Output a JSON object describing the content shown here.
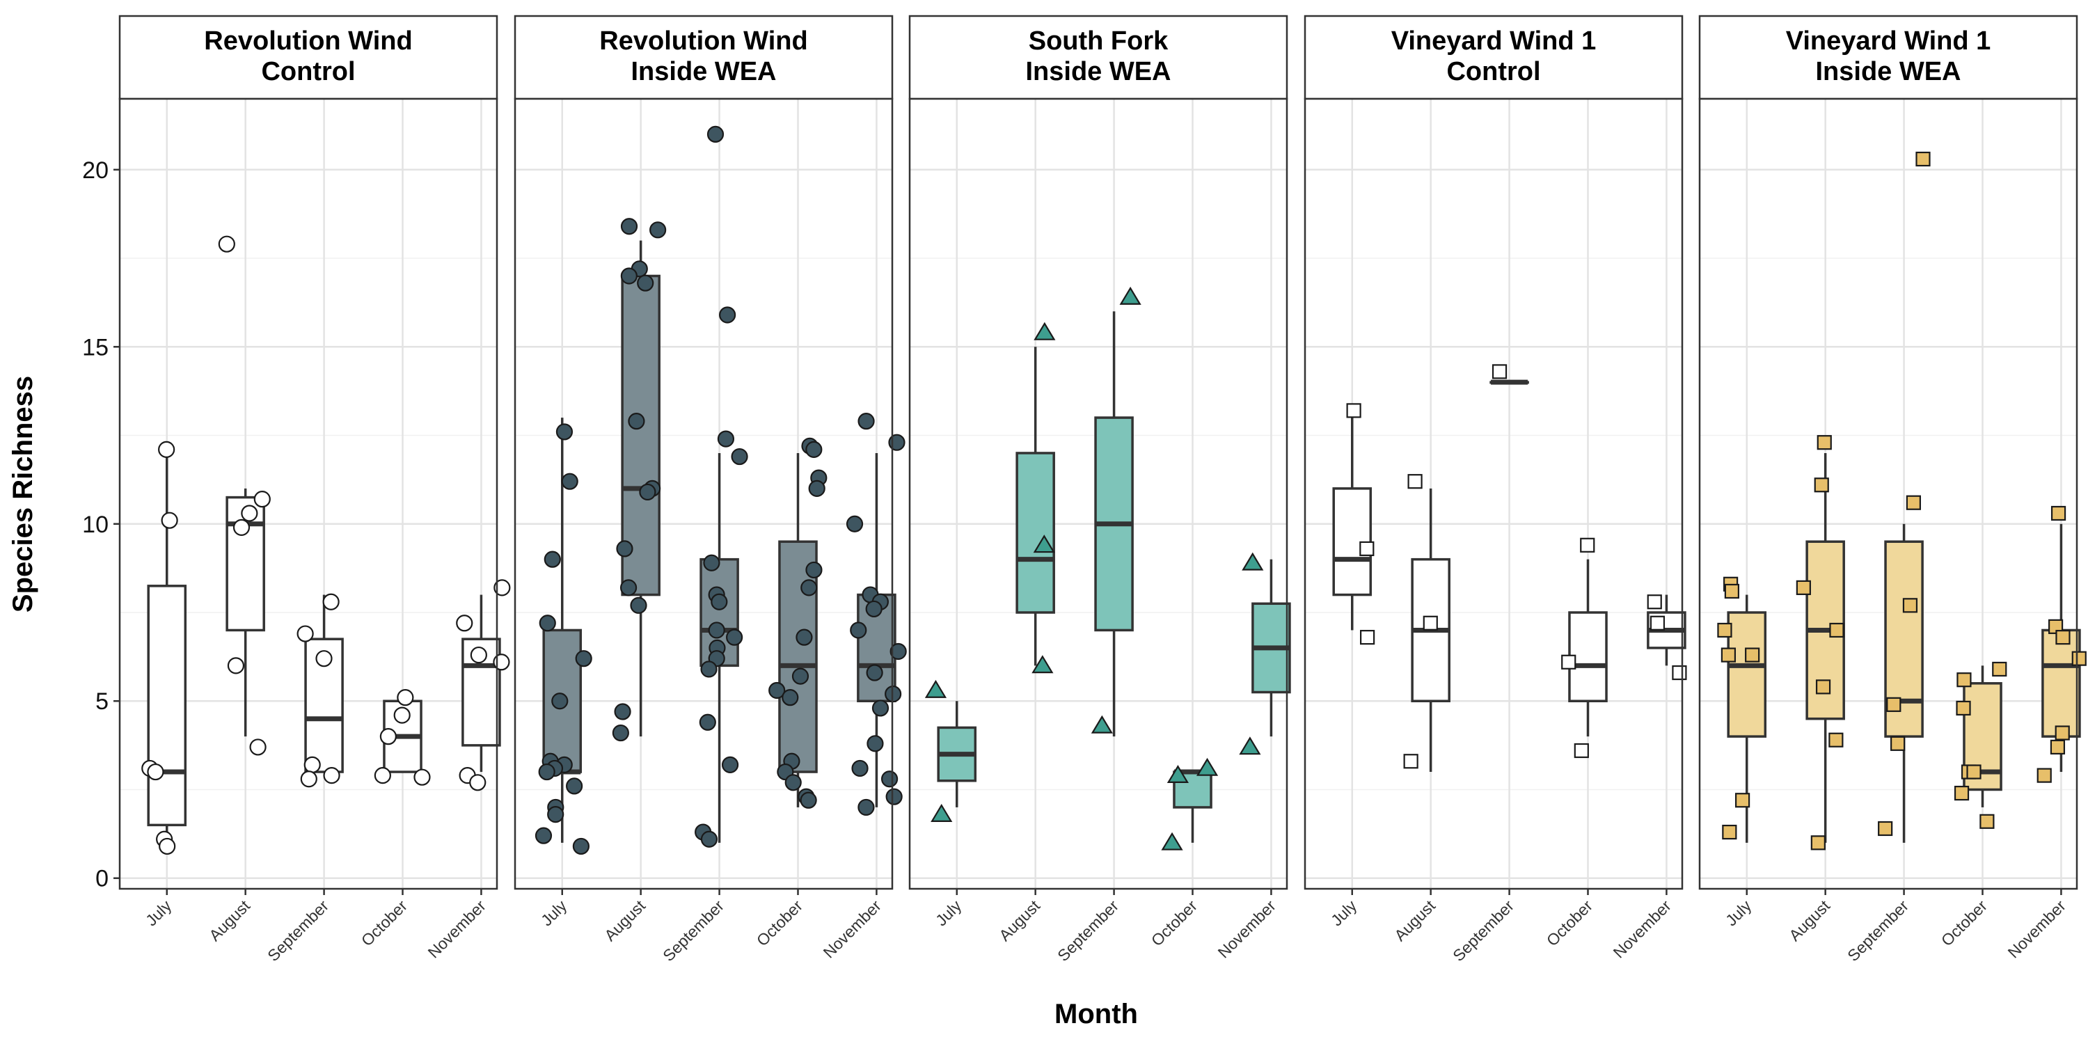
{
  "chart_data": {
    "type": "box",
    "title": "",
    "xlabel": "Month",
    "ylabel": "Species Richness",
    "categories": [
      "July",
      "August",
      "September",
      "October",
      "November"
    ],
    "ylim": [
      -0.3,
      22
    ],
    "yticks": [
      0,
      5,
      10,
      15,
      20
    ],
    "grid": true,
    "panels": [
      {
        "name": "Revolution Wind Control",
        "title_lines": [
          "Revolution Wind",
          "Control"
        ],
        "fill": "#ffffff",
        "point_fill": "#ffffff",
        "point_shape": "circle",
        "boxes": [
          {
            "month": "July",
            "min": 1,
            "q1": 1.5,
            "median": 3,
            "q3": 8.25,
            "max": 12
          },
          {
            "month": "August",
            "min": 4,
            "q1": 7,
            "median": 10,
            "q3": 10.75,
            "max": 11
          },
          {
            "month": "September",
            "min": 3,
            "q1": 3,
            "median": 4.5,
            "q3": 6.75,
            "max": 8
          },
          {
            "month": "October",
            "min": 3,
            "q1": 3,
            "median": 4,
            "q3": 5,
            "max": 5
          },
          {
            "month": "November",
            "min": 3,
            "q1": 3.75,
            "median": 6,
            "q3": 6.75,
            "max": 8
          }
        ],
        "points": [
          {
            "month": "July",
            "values": [
              12.1,
              10.1,
              3.1,
              3.0,
              1.1,
              0.9
            ]
          },
          {
            "month": "August",
            "values": [
              17.9,
              10.7,
              10.3,
              9.9,
              6.0,
              3.7
            ]
          },
          {
            "month": "September",
            "values": [
              7.8,
              6.9,
              6.2,
              3.2,
              2.9,
              2.8
            ]
          },
          {
            "month": "October",
            "values": [
              5.1,
              4.6,
              4.0,
              2.9,
              2.85
            ]
          },
          {
            "month": "November",
            "values": [
              8.2,
              7.2,
              6.3,
              6.1,
              2.9,
              2.7
            ]
          }
        ]
      },
      {
        "name": "Revolution Wind Inside WEA",
        "title_lines": [
          "Revolution Wind",
          "Inside WEA"
        ],
        "fill": "#7b8c93",
        "point_fill": "#3e5560",
        "point_shape": "circle",
        "boxes": [
          {
            "month": "July",
            "min": 1,
            "q1": 3,
            "median": 3,
            "q3": 7,
            "max": 13
          },
          {
            "month": "August",
            "min": 4,
            "q1": 8,
            "median": 11,
            "q3": 17,
            "max": 18
          },
          {
            "month": "September",
            "min": 1,
            "q1": 6,
            "median": 7,
            "q3": 9,
            "max": 12
          },
          {
            "month": "October",
            "min": 2,
            "q1": 3,
            "median": 6,
            "q3": 9.5,
            "max": 12
          },
          {
            "month": "November",
            "min": 2,
            "q1": 5,
            "median": 6,
            "q3": 8,
            "max": 12
          }
        ],
        "points": [
          {
            "month": "July",
            "values": [
              12.6,
              11.2,
              9.0,
              7.2,
              6.2,
              5.0,
              3.3,
              3.2,
              3.1,
              3.0,
              2.6,
              2.0,
              1.8,
              1.2,
              0.9
            ]
          },
          {
            "month": "August",
            "values": [
              18.4,
              18.3,
              17.2,
              17.0,
              16.8,
              12.9,
              11.0,
              10.9,
              9.3,
              8.2,
              7.7,
              4.7,
              4.1
            ]
          },
          {
            "month": "September",
            "values": [
              21.0,
              15.9,
              12.4,
              11.9,
              8.9,
              8.0,
              7.8,
              7.0,
              6.8,
              6.5,
              6.2,
              5.9,
              4.4,
              3.2,
              1.3,
              1.1
            ]
          },
          {
            "month": "October",
            "values": [
              12.2,
              12.1,
              11.3,
              11.0,
              8.7,
              8.2,
              6.8,
              5.7,
              5.3,
              5.1,
              3.3,
              3.0,
              2.7,
              2.3,
              2.2
            ]
          },
          {
            "month": "November",
            "values": [
              12.9,
              12.3,
              10.0,
              8.0,
              7.8,
              7.6,
              7.0,
              6.4,
              5.8,
              5.2,
              4.8,
              3.8,
              3.1,
              2.8,
              2.3,
              2.0
            ]
          }
        ]
      },
      {
        "name": "South Fork Inside WEA",
        "title_lines": [
          "South Fork",
          "Inside WEA"
        ],
        "fill": "#7ec4b9",
        "point_fill": "#3e9e8f",
        "point_shape": "triangle",
        "boxes": [
          {
            "month": "July",
            "min": 2,
            "q1": 2.75,
            "median": 3.5,
            "q3": 4.25,
            "max": 5
          },
          {
            "month": "August",
            "min": 6,
            "q1": 7.5,
            "median": 9,
            "q3": 12,
            "max": 15
          },
          {
            "month": "September",
            "min": 4,
            "q1": 7,
            "median": 10,
            "q3": 13,
            "max": 16
          },
          {
            "month": "October",
            "min": 1,
            "q1": 2,
            "median": 3,
            "q3": 3,
            "max": 3
          },
          {
            "month": "November",
            "min": 4,
            "q1": 5.25,
            "median": 6.5,
            "q3": 7.75,
            "max": 9
          }
        ],
        "points": [
          {
            "month": "July",
            "values": [
              5.3,
              1.8
            ]
          },
          {
            "month": "August",
            "values": [
              15.4,
              9.4,
              6.0
            ]
          },
          {
            "month": "September",
            "values": [
              16.4,
              4.3
            ]
          },
          {
            "month": "October",
            "values": [
              3.1,
              2.9,
              1.0
            ]
          },
          {
            "month": "November",
            "values": [
              8.9,
              3.7
            ]
          }
        ]
      },
      {
        "name": "Vineyard Wind 1 Control",
        "title_lines": [
          "Vineyard Wind 1",
          "Control"
        ],
        "fill": "#ffffff",
        "point_fill": "#ffffff",
        "point_shape": "square",
        "boxes": [
          {
            "month": "July",
            "min": 7,
            "q1": 8,
            "median": 9,
            "q3": 11,
            "max": 13
          },
          {
            "month": "August",
            "min": 3,
            "q1": 5,
            "median": 7,
            "q3": 9,
            "max": 11
          },
          {
            "month": "September",
            "min": 14,
            "q1": 14,
            "median": 14,
            "q3": 14,
            "max": 14
          },
          {
            "month": "October",
            "min": 4,
            "q1": 5,
            "median": 6,
            "q3": 7.5,
            "max": 9
          },
          {
            "month": "November",
            "min": 6,
            "q1": 6.5,
            "median": 7,
            "q3": 7.5,
            "max": 8
          }
        ],
        "points": [
          {
            "month": "July",
            "values": [
              13.2,
              9.3,
              6.8
            ]
          },
          {
            "month": "August",
            "values": [
              11.2,
              7.2,
              3.3
            ]
          },
          {
            "month": "September",
            "values": [
              14.3
            ]
          },
          {
            "month": "October",
            "values": [
              9.4,
              6.1,
              3.6
            ]
          },
          {
            "month": "November",
            "values": [
              7.8,
              7.2,
              5.8
            ]
          }
        ]
      },
      {
        "name": "Vineyard Wind 1 Inside WEA",
        "title_lines": [
          "Vineyard Wind 1",
          "Inside WEA"
        ],
        "fill": "#f0d89b",
        "point_fill": "#e7bf6a",
        "point_shape": "square",
        "boxes": [
          {
            "month": "July",
            "min": 1,
            "q1": 4,
            "median": 6,
            "q3": 7.5,
            "max": 8
          },
          {
            "month": "August",
            "min": 1,
            "q1": 4.5,
            "median": 7,
            "q3": 9.5,
            "max": 12
          },
          {
            "month": "September",
            "min": 1,
            "q1": 4,
            "median": 5,
            "q3": 9.5,
            "max": 10
          },
          {
            "month": "October",
            "min": 2,
            "q1": 2.5,
            "median": 3,
            "q3": 5.5,
            "max": 6
          },
          {
            "month": "November",
            "min": 3,
            "q1": 4,
            "median": 6,
            "q3": 7,
            "max": 10
          }
        ],
        "points": [
          {
            "month": "July",
            "values": [
              8.3,
              8.1,
              7.0,
              6.3,
              6.3,
              2.2,
              1.3
            ]
          },
          {
            "month": "August",
            "values": [
              12.3,
              11.1,
              8.2,
              7.0,
              5.4,
              3.9,
              1.0
            ]
          },
          {
            "month": "September",
            "values": [
              20.3,
              10.6,
              7.7,
              4.9,
              3.8,
              1.4
            ]
          },
          {
            "month": "October",
            "values": [
              5.9,
              5.6,
              4.8,
              3.0,
              3.0,
              2.4,
              1.6
            ]
          },
          {
            "month": "November",
            "values": [
              10.3,
              7.1,
              6.8,
              6.2,
              4.1,
              3.7,
              2.9
            ]
          }
        ]
      }
    ]
  }
}
